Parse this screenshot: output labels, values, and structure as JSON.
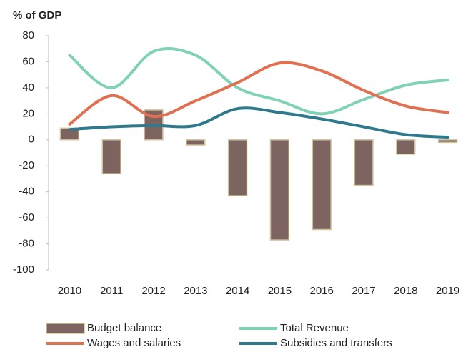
{
  "chart_data": {
    "type": "bar_line",
    "y_axis_label": "% of GDP",
    "categories": [
      "2010",
      "2011",
      "2012",
      "2013",
      "2014",
      "2015",
      "2016",
      "2017",
      "2018",
      "2019"
    ],
    "ylim": [
      -100,
      80
    ],
    "yticks": [
      80,
      60,
      40,
      20,
      0,
      -20,
      -40,
      -60,
      -80,
      -100
    ],
    "series": [
      {
        "name": "Budget balance",
        "type": "bar",
        "color": "#7d6461",
        "values": [
          9,
          -26,
          23,
          -4,
          -43,
          -77,
          -69,
          -35,
          -11,
          -2
        ]
      },
      {
        "name": "Total Revenue",
        "type": "line",
        "color": "#7fd3b4",
        "values": [
          65,
          40,
          68,
          65,
          40,
          30,
          20,
          31,
          42,
          46
        ]
      },
      {
        "name": "Wages and salaries",
        "type": "line",
        "color": "#e07050",
        "values": [
          12,
          34,
          18,
          30,
          44,
          59,
          53,
          38,
          26,
          21
        ]
      },
      {
        "name": "Subsidies and transfers",
        "type": "line",
        "color": "#2e7a8c",
        "values": [
          8,
          10,
          11,
          11,
          24,
          21,
          16,
          10,
          4,
          2
        ]
      }
    ]
  }
}
